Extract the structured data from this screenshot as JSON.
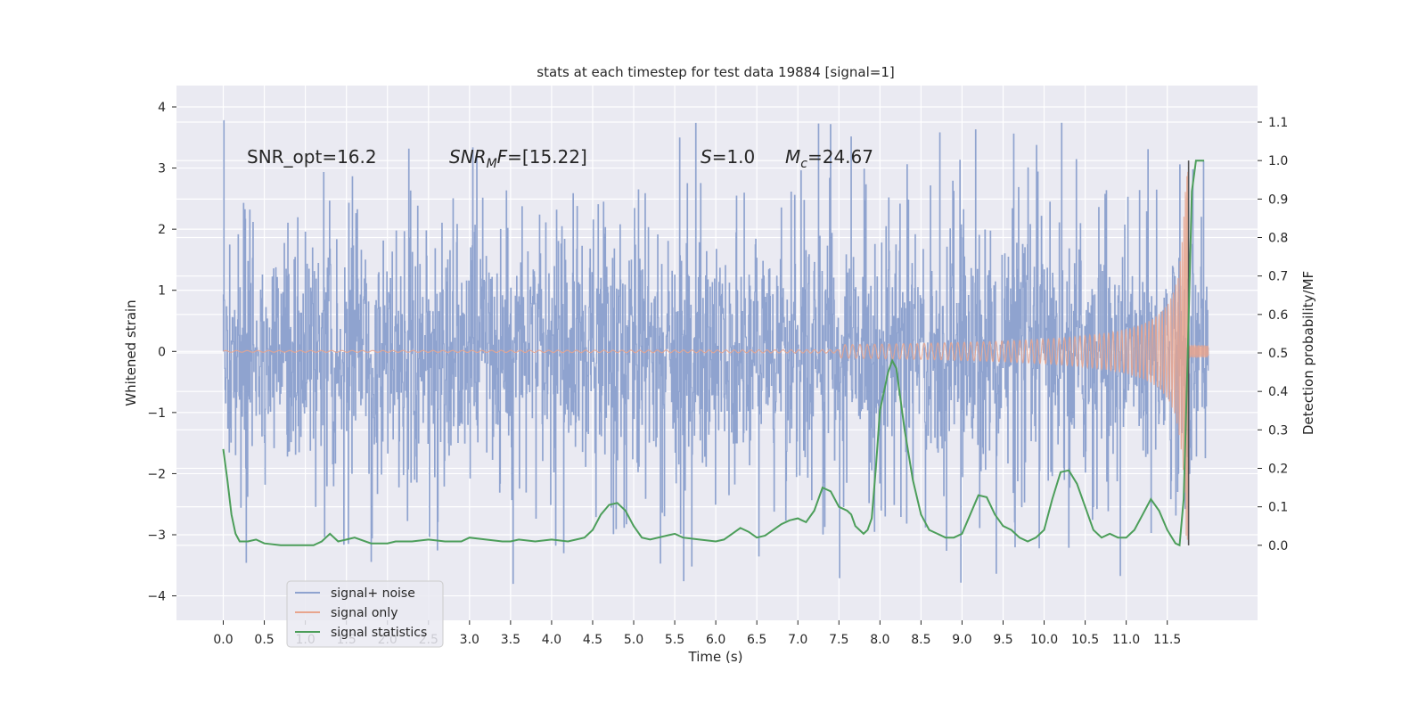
{
  "chart_data": {
    "type": "line",
    "title": "stats at each timestep for test data 19884 [signal=1]",
    "xlabel": "Time (s)",
    "ylabel": "Whitened strain",
    "y2label": "Detection probability/MF",
    "xlim": [
      -0.57,
      12.6
    ],
    "ylim": [
      -4.4,
      4.35
    ],
    "y2lim": [
      -0.195,
      1.195
    ],
    "x_ticks": [
      "0.0",
      "0.5",
      "1.0",
      "1.5",
      "2.0",
      "2.5",
      "3.0",
      "3.5",
      "4.0",
      "4.5",
      "5.0",
      "5.5",
      "6.0",
      "6.5",
      "7.0",
      "7.5",
      "8.0",
      "8.5",
      "9.0",
      "9.5",
      "10.0",
      "10.5",
      "11.0",
      "11.5"
    ],
    "y_ticks": [
      "4",
      "3",
      "2",
      "1",
      "0",
      "−1",
      "−2",
      "−3",
      "−4"
    ],
    "y2_ticks": [
      "1.1",
      "1.0",
      "0.9",
      "0.8",
      "0.7",
      "0.6",
      "0.5",
      "0.4",
      "0.3",
      "0.2",
      "0.1",
      "0.0"
    ],
    "grid": true,
    "legend_position": "lower-left",
    "series": [
      {
        "name": "signal+ noise",
        "axis": "left",
        "color": "#8fa3cf",
        "style": "dense noise, |strain| mostly within 3, occasional spikes to about ±4",
        "x_range": [
          0.0,
          12.0
        ]
      },
      {
        "name": "signal only",
        "axis": "left",
        "color": "#e8a58e",
        "style": "chirp, amplitude near 0 until ~8 s then growing to about ±3 at merger near 11.72 s",
        "x_range": [
          0.0,
          12.0
        ]
      },
      {
        "name": "signal statistics",
        "axis": "right",
        "color": "#4c9e5a",
        "x": [
          0.0,
          0.05,
          0.1,
          0.15,
          0.2,
          0.3,
          0.4,
          0.5,
          0.7,
          1.0,
          1.1,
          1.2,
          1.25,
          1.3,
          1.4,
          1.5,
          1.6,
          1.8,
          2.0,
          2.1,
          2.2,
          2.3,
          2.5,
          2.7,
          2.8,
          2.9,
          3.0,
          3.2,
          3.4,
          3.5,
          3.6,
          3.8,
          4.0,
          4.2,
          4.3,
          4.4,
          4.5,
          4.6,
          4.7,
          4.8,
          4.9,
          5.0,
          5.1,
          5.2,
          5.4,
          5.5,
          5.6,
          5.8,
          6.0,
          6.1,
          6.2,
          6.3,
          6.4,
          6.5,
          6.6,
          6.7,
          6.8,
          6.9,
          7.0,
          7.05,
          7.1,
          7.2,
          7.3,
          7.4,
          7.5,
          7.6,
          7.65,
          7.7,
          7.8,
          7.85,
          7.9,
          7.95,
          8.0,
          8.05,
          8.1,
          8.15,
          8.2,
          8.3,
          8.4,
          8.5,
          8.6,
          8.7,
          8.8,
          8.9,
          9.0,
          9.1,
          9.2,
          9.3,
          9.4,
          9.5,
          9.6,
          9.7,
          9.8,
          9.9,
          10.0,
          10.1,
          10.2,
          10.3,
          10.4,
          10.5,
          10.6,
          10.7,
          10.8,
          10.9,
          11.0,
          11.1,
          11.2,
          11.3,
          11.4,
          11.5,
          11.6,
          11.65,
          11.7,
          11.75,
          11.8,
          11.85,
          11.9,
          11.95
        ],
        "y": [
          0.25,
          0.17,
          0.08,
          0.03,
          0.01,
          0.01,
          0.015,
          0.005,
          0.0,
          0.0,
          0.0,
          0.01,
          0.02,
          0.03,
          0.01,
          0.015,
          0.02,
          0.005,
          0.005,
          0.01,
          0.01,
          0.01,
          0.015,
          0.01,
          0.01,
          0.01,
          0.02,
          0.015,
          0.01,
          0.01,
          0.015,
          0.01,
          0.015,
          0.01,
          0.015,
          0.02,
          0.04,
          0.08,
          0.105,
          0.11,
          0.09,
          0.05,
          0.02,
          0.015,
          0.025,
          0.03,
          0.02,
          0.015,
          0.01,
          0.015,
          0.03,
          0.045,
          0.035,
          0.02,
          0.025,
          0.04,
          0.055,
          0.065,
          0.07,
          0.065,
          0.06,
          0.09,
          0.15,
          0.14,
          0.1,
          0.09,
          0.08,
          0.05,
          0.03,
          0.04,
          0.07,
          0.2,
          0.35,
          0.4,
          0.45,
          0.48,
          0.46,
          0.3,
          0.17,
          0.08,
          0.04,
          0.03,
          0.02,
          0.02,
          0.03,
          0.08,
          0.13,
          0.125,
          0.08,
          0.05,
          0.04,
          0.02,
          0.01,
          0.02,
          0.04,
          0.12,
          0.19,
          0.195,
          0.16,
          0.1,
          0.04,
          0.02,
          0.03,
          0.02,
          0.02,
          0.04,
          0.08,
          0.12,
          0.09,
          0.04,
          0.005,
          0.0,
          0.12,
          0.5,
          0.92,
          1.0,
          1.0,
          1.0
        ]
      }
    ],
    "markers": [
      {
        "label": "vertical line at merger",
        "x": 11.76,
        "y2_range": [
          0.0,
          1.0
        ],
        "color": "#555555"
      }
    ],
    "annotations": {
      "snr_opt": "SNR_opt=16.2",
      "snr_mf_var": "SNR",
      "snr_mf_sub": "M",
      "snr_mf_rest": "F=[15.22]",
      "s_var": "S",
      "s_rest": "=1.0",
      "mc_var": "M",
      "mc_sub": "c",
      "mc_rest": "=24.67"
    }
  }
}
